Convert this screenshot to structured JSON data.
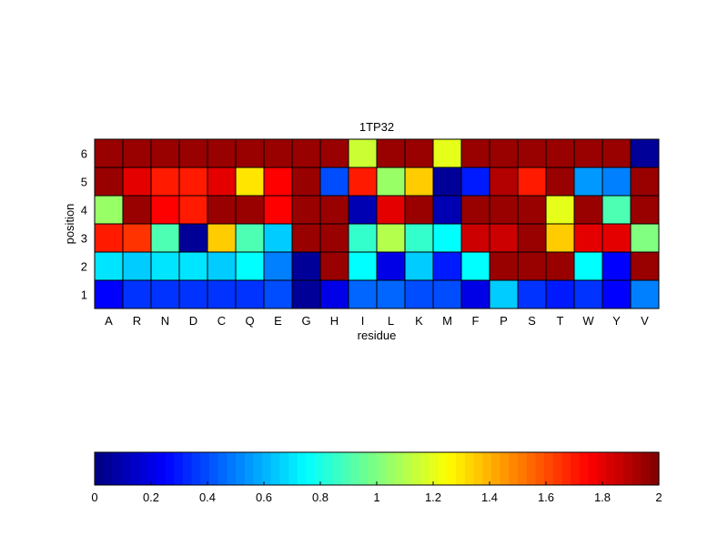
{
  "chart_data": {
    "type": "heatmap",
    "title": "1TP32",
    "xlabel": "residue",
    "ylabel": "position",
    "x_categories": [
      "A",
      "R",
      "N",
      "D",
      "C",
      "Q",
      "E",
      "G",
      "H",
      "I",
      "L",
      "K",
      "M",
      "F",
      "P",
      "S",
      "T",
      "W",
      "Y",
      "V"
    ],
    "y_categories": [
      "1",
      "2",
      "3",
      "4",
      "5",
      "6"
    ],
    "values": [
      [
        0.25,
        0.35,
        0.35,
        0.35,
        0.35,
        0.35,
        0.4,
        0.05,
        0.2,
        0.45,
        0.45,
        0.4,
        0.4,
        0.2,
        0.65,
        0.35,
        0.3,
        0.35,
        0.25,
        0.5
      ],
      [
        0.7,
        0.65,
        0.7,
        0.7,
        0.65,
        0.75,
        0.5,
        0.05,
        1.95,
        0.75,
        0.2,
        0.65,
        0.3,
        0.75,
        1.95,
        1.95,
        1.95,
        0.75,
        0.25,
        1.95
      ],
      [
        1.7,
        1.65,
        0.9,
        0.05,
        1.35,
        0.9,
        0.65,
        1.95,
        1.95,
        0.85,
        1.1,
        0.85,
        0.75,
        1.85,
        1.85,
        1.95,
        1.35,
        1.8,
        1.8,
        1.0
      ],
      [
        1.05,
        1.95,
        1.75,
        1.7,
        1.95,
        1.95,
        1.75,
        1.95,
        1.95,
        0.1,
        1.8,
        1.95,
        0.1,
        1.95,
        1.95,
        1.95,
        1.2,
        1.95,
        0.9,
        1.95
      ],
      [
        1.95,
        1.8,
        1.7,
        1.7,
        1.8,
        1.3,
        1.75,
        1.95,
        0.4,
        1.7,
        1.05,
        1.35,
        0.05,
        0.3,
        1.9,
        1.7,
        1.95,
        0.55,
        0.5,
        1.95
      ],
      [
        1.95,
        1.95,
        1.95,
        1.95,
        1.95,
        1.95,
        1.95,
        1.95,
        1.95,
        1.15,
        1.95,
        1.95,
        1.2,
        1.95,
        1.95,
        1.95,
        1.95,
        1.95,
        1.95,
        0.05
      ]
    ],
    "colorbar": {
      "colormap": "jet",
      "min": 0,
      "max": 2,
      "ticks": [
        "0",
        "0.2",
        "0.4",
        "0.6",
        "0.8",
        "1",
        "1.2",
        "1.4",
        "1.6",
        "1.8",
        "2"
      ]
    },
    "grid": true
  }
}
